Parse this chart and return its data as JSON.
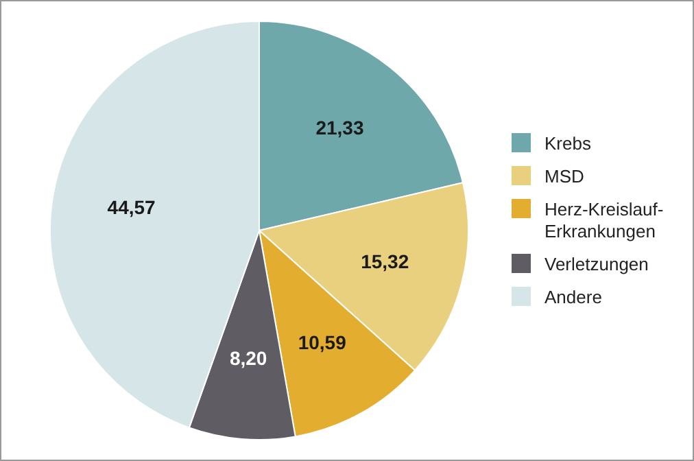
{
  "chart_data": {
    "type": "pie",
    "categories": [
      "Krebs",
      "MSD",
      "Herz-Kreislauf-Erkrankungen",
      "Verletzungen",
      "Andere"
    ],
    "values": [
      21.33,
      15.32,
      10.59,
      8.2,
      44.57
    ],
    "value_labels": [
      "21,33",
      "15,32",
      "10,59",
      "8,20",
      "44,57"
    ],
    "colors": [
      "#6fa8ab",
      "#e8d07e",
      "#e3ad2f",
      "#5f5c64",
      "#d5e5e8"
    ],
    "legend": "right"
  }
}
